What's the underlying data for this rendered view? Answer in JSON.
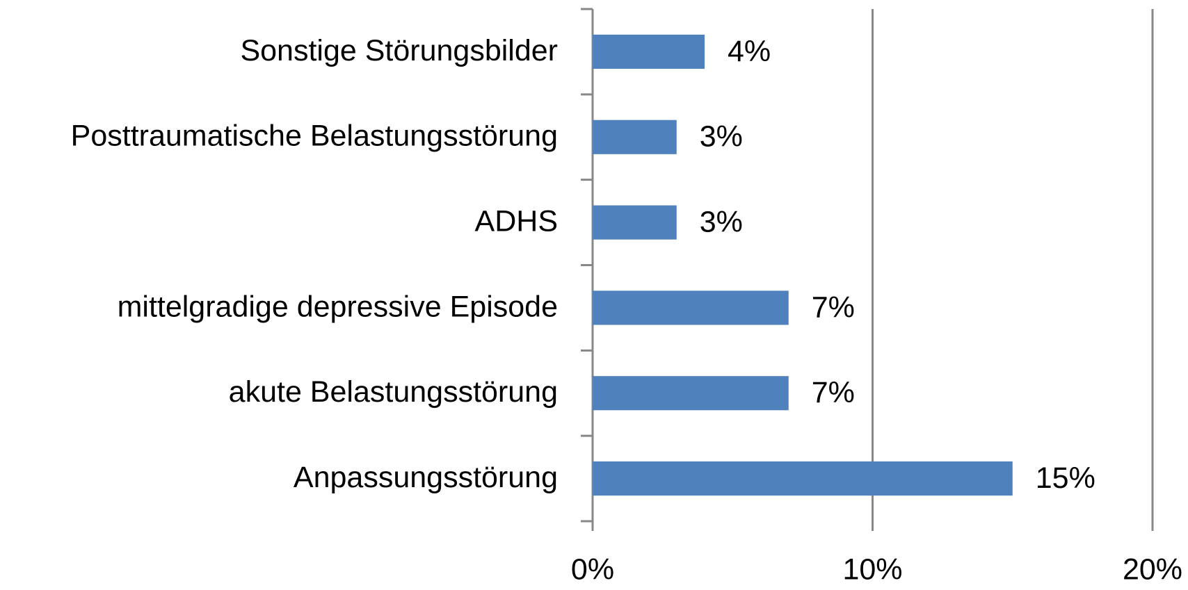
{
  "chart_data": {
    "type": "barh",
    "categories": [
      "Sonstige Störungsbilder",
      "Posttraumatische Belastungsstörung",
      "ADHS",
      "mittelgradige depressive Episode",
      "akute Belastungsstörung",
      "Anpassungsstörung"
    ],
    "values": [
      4,
      3,
      3,
      7,
      7,
      15
    ],
    "value_labels": [
      "4%",
      "3%",
      "3%",
      "7%",
      "7%",
      "15%"
    ],
    "color": "#4f81bd",
    "xlim": [
      0,
      20
    ],
    "xticks": [
      {
        "value": 0,
        "label": "0%"
      },
      {
        "value": 10,
        "label": "10%"
      },
      {
        "value": 20,
        "label": "20%"
      }
    ],
    "grid": true
  }
}
